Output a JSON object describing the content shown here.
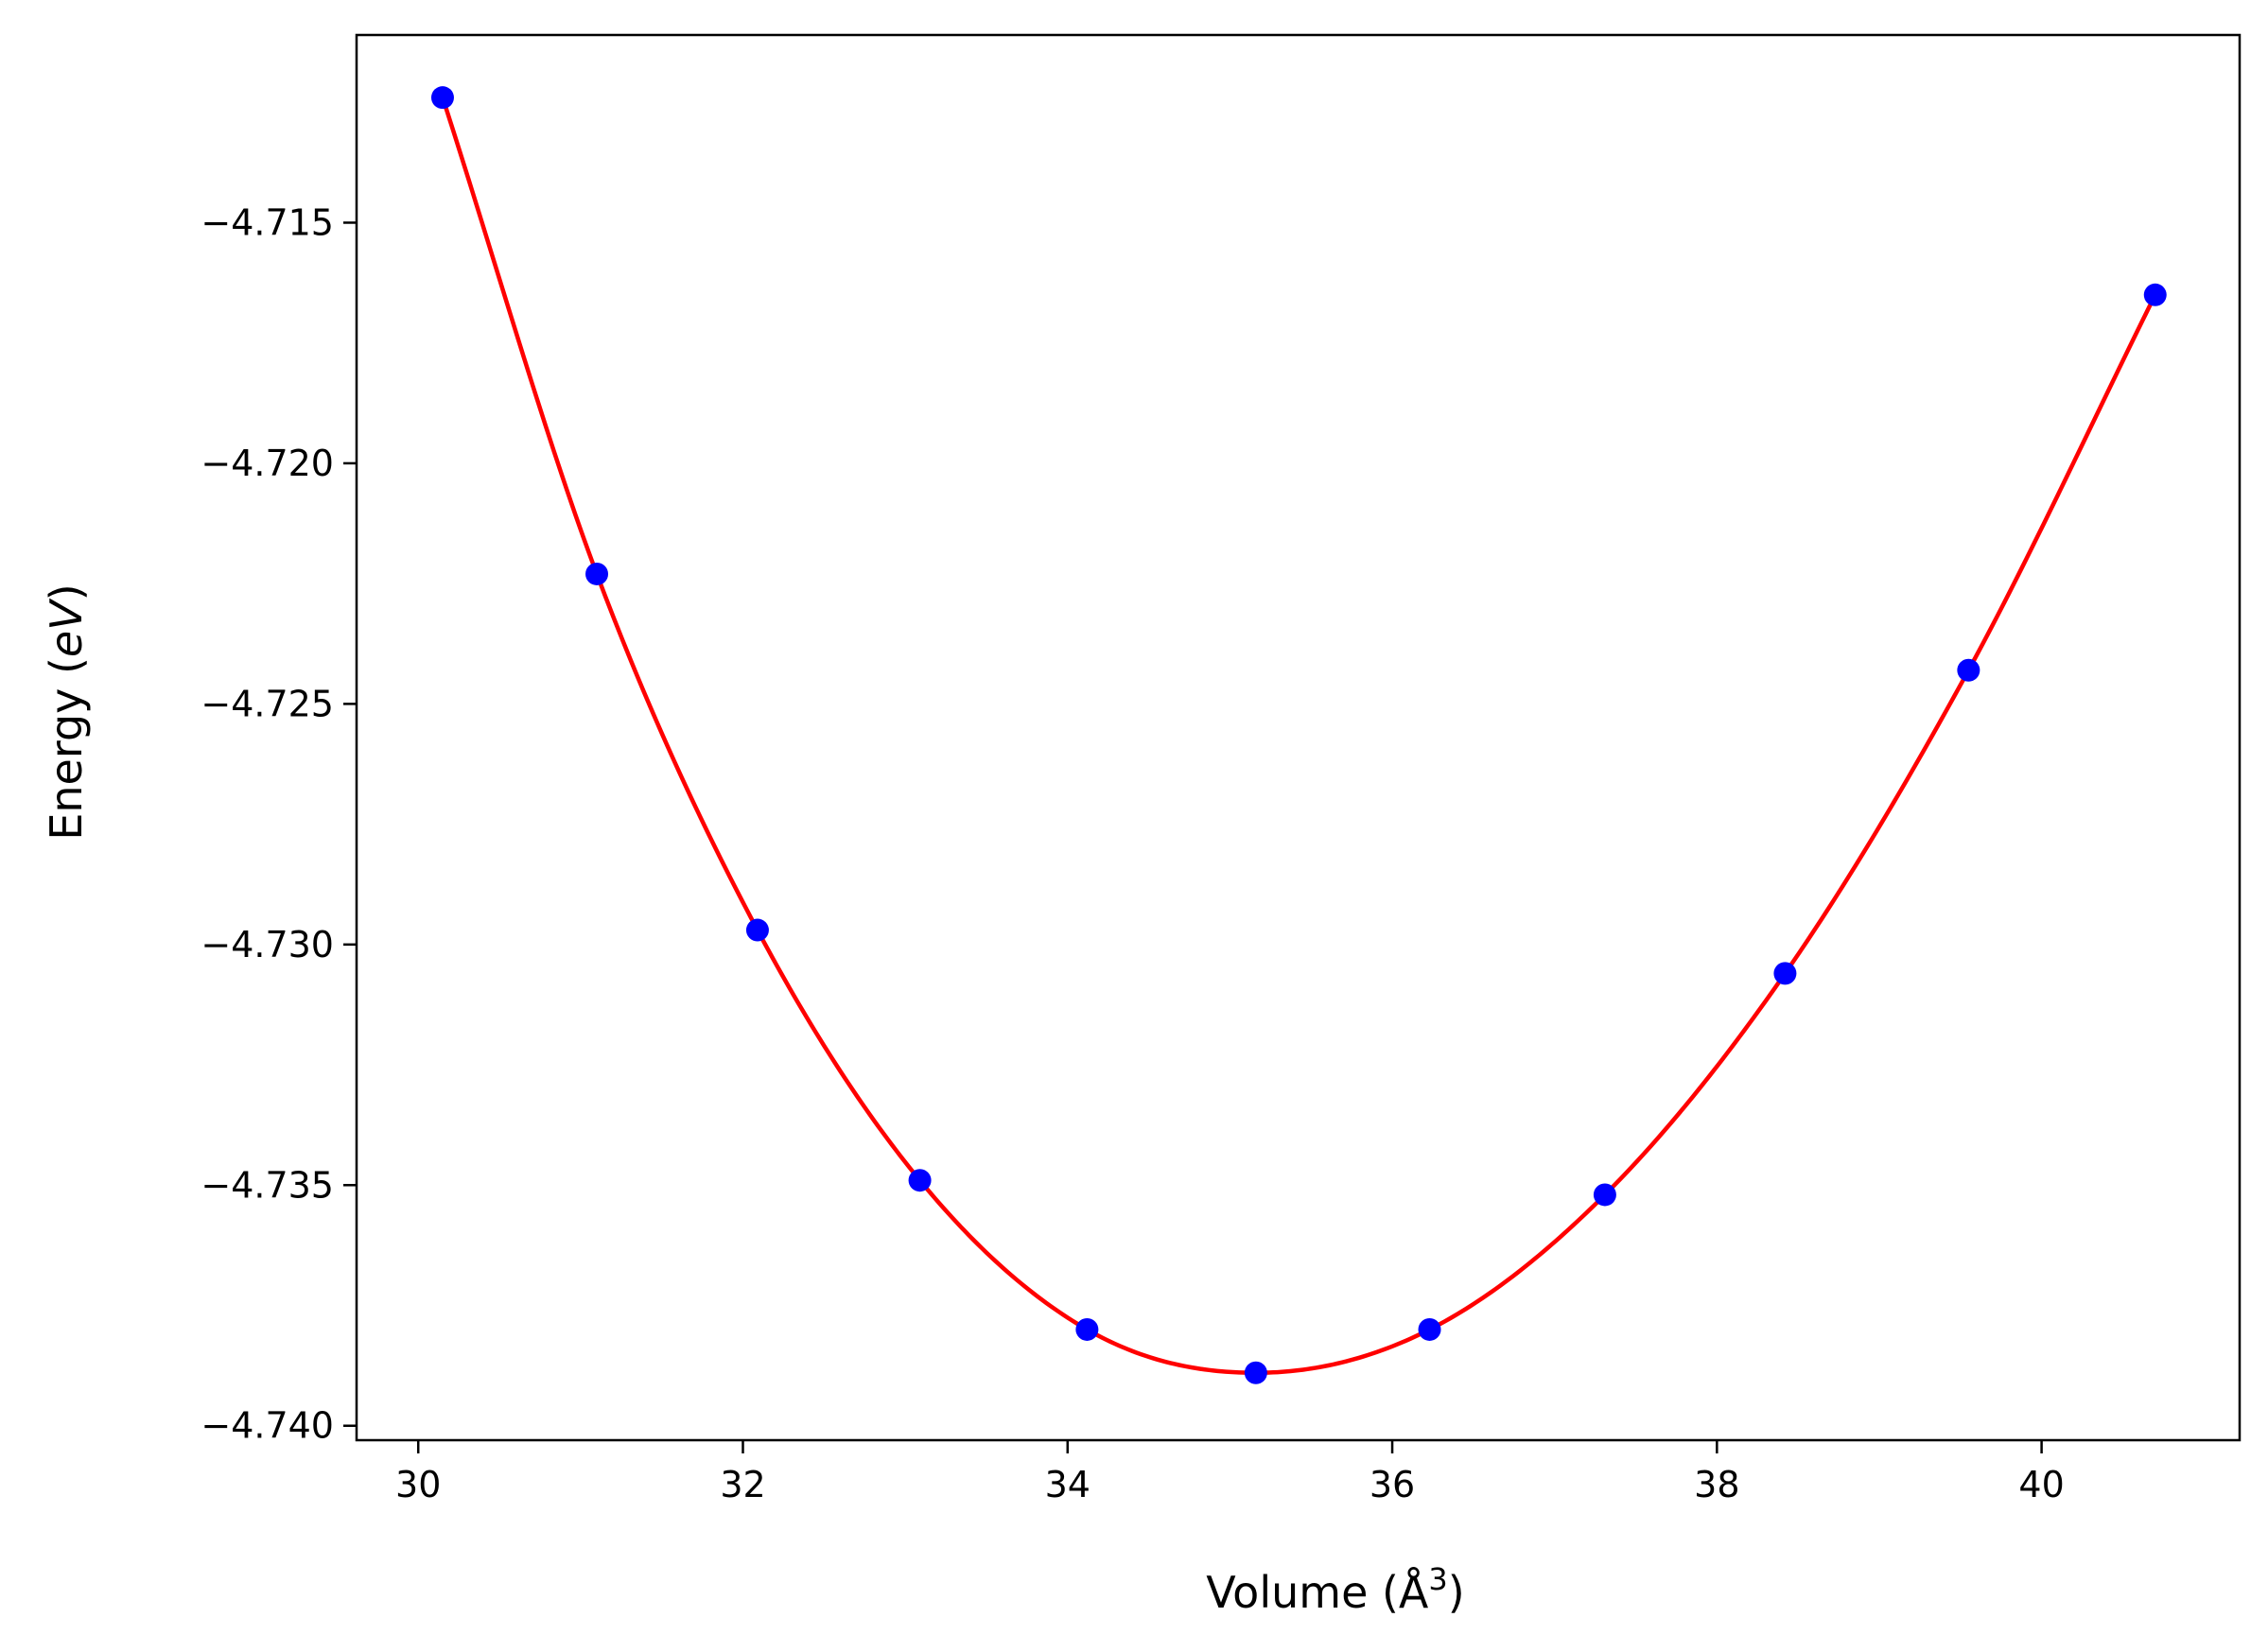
{
  "chart_data": {
    "type": "scatter",
    "title": "",
    "xlabel": "Volume (Å",
    "xlabel_sup": "3",
    "xlabel_close": ")",
    "ylabel": "Energy (",
    "ylabel_italic": "eV",
    "ylabel_close": ")",
    "xlim": [
      29.62,
      41.22
    ],
    "ylim": [
      -4.7403,
      -4.7111
    ],
    "xticks": [
      30,
      32,
      34,
      36,
      38,
      40
    ],
    "xtick_labels": [
      "30",
      "32",
      "34",
      "36",
      "38",
      "40"
    ],
    "yticks": [
      -4.715,
      -4.72,
      -4.725,
      -4.73,
      -4.735,
      -4.74
    ],
    "ytick_labels": [
      "−4.715",
      "−4.720",
      "−4.725",
      "−4.730",
      "−4.735",
      "−4.740"
    ],
    "grid": false,
    "series": [
      {
        "kind": "points",
        "color": "#0000ff",
        "x": [
          30.15,
          31.1,
          32.09,
          33.09,
          34.12,
          35.16,
          36.23,
          37.31,
          38.42,
          39.55,
          40.7
        ],
        "y": [
          -4.7124,
          -4.7223,
          -4.7297,
          -4.7349,
          -4.738,
          -4.7389,
          -4.738,
          -4.7352,
          -4.7306,
          -4.7243,
          -4.7165
        ]
      },
      {
        "kind": "fit-curve",
        "color": "#ff0000",
        "x_range": [
          30.15,
          40.7
        ],
        "x_min": 35.0,
        "y_min": -4.7389,
        "fit_points_x": [
          30.15,
          31.1,
          32.09,
          33.09,
          34.12,
          35.16,
          36.23,
          37.31,
          38.42,
          39.55,
          40.7
        ],
        "fit_points_y": [
          -4.7124,
          -4.7223,
          -4.7297,
          -4.7349,
          -4.738,
          -4.7389,
          -4.738,
          -4.7352,
          -4.7306,
          -4.7243,
          -4.7165
        ]
      }
    ]
  }
}
